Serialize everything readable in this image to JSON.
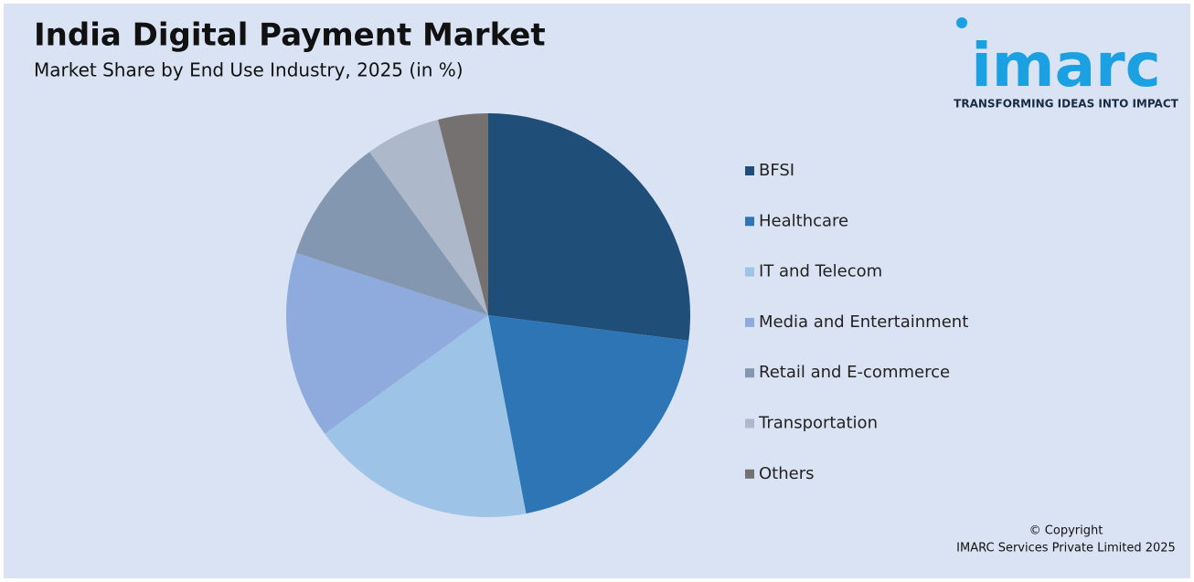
{
  "chart_data": {
    "type": "pie",
    "title": "India Digital Payment Market",
    "subtitle": "Market Share by End Use Industry, 2025 (in %)",
    "categories": [
      "BFSI",
      "Healthcare",
      "IT and Telecom",
      "Media and Entertainment",
      "Retail and E-commerce",
      "Transportation",
      "Others"
    ],
    "values": [
      27,
      20,
      18,
      15,
      10,
      6,
      4
    ],
    "colors": [
      "#1f4e79",
      "#2e75b6",
      "#9dc3e6",
      "#8faadc",
      "#8497b0",
      "#adb9ca",
      "#767171"
    ],
    "legend": "right"
  },
  "logo": {
    "name": "imarc",
    "tagline": "TRANSFORMING IDEAS INTO IMPACT"
  },
  "footer": {
    "line1": "© Copyright",
    "line2": "IMARC Services Private Limited 2025"
  }
}
